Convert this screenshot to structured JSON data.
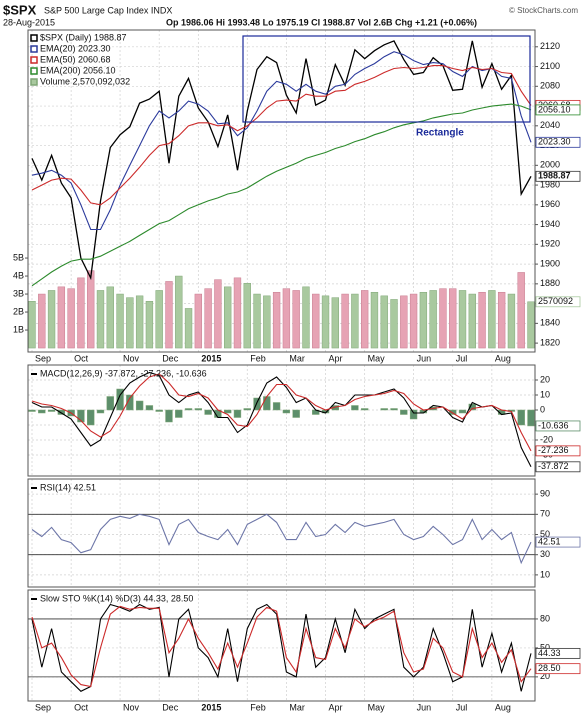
{
  "header": {
    "symbol": "$SPX",
    "name": "S&P 500 Large Cap Index INDX",
    "date": "28-Aug-2015",
    "quote": "Op 1986.06 Hi 1993.48 Lo 1975.19 Cl 1988.87 Vol 2.6B Chg +1.21 (+0.06%)",
    "credit": "© StockCharts.com",
    "annotation": "Rectangle"
  },
  "chart_data": [
    {
      "type": "line",
      "categories": [
        "Sep",
        null,
        null,
        null,
        "Oct",
        null,
        null,
        null,
        null,
        "Nov",
        null,
        null,
        null,
        "Dec",
        null,
        null,
        null,
        "2015",
        null,
        null,
        null,
        null,
        "Feb",
        null,
        null,
        null,
        "Mar",
        null,
        null,
        null,
        "Apr",
        null,
        null,
        null,
        "May",
        null,
        null,
        null,
        null,
        "Jun",
        null,
        null,
        null,
        "Jul",
        null,
        null,
        null,
        "Aug",
        null,
        null,
        null,
        null
      ],
      "ylim": [
        1811,
        2137
      ],
      "yticks": [
        1820,
        1840,
        1860,
        1880,
        1900,
        1920,
        1940,
        1960,
        1980,
        2000,
        2020,
        2040,
        2060,
        2080,
        2100,
        2120
      ],
      "y2lim": [
        -220000000,
        17670000000
      ],
      "y2ticks": [
        {
          "value": 1000000000,
          "label": "1B"
        },
        {
          "value": 2000000000,
          "label": "2B"
        },
        {
          "value": 3000000000,
          "label": "3B"
        },
        {
          "value": 4000000000,
          "label": "4B"
        },
        {
          "value": 5000000000,
          "label": "5B"
        }
      ],
      "grid": true,
      "series": [
        {
          "name": "$SPX (Daily) 1988.87",
          "type": "line",
          "color": "#000000",
          "tag": "1988.87",
          "values": [
            2007,
            1985,
            2010,
            1982,
            1967,
            1906,
            1886,
            1964,
            2018,
            2031,
            2039,
            2063,
            2067,
            2075,
            2002,
            2070,
            2088,
            2058,
            2044,
            2019,
            2051,
            1995,
            2055,
            2097,
            2110,
            2104,
            2071,
            2053,
            2108,
            2061,
            2066,
            2102,
            2081,
            2117,
            2108,
            2116,
            2122,
            2126,
            2107,
            2092,
            2094,
            2109,
            2101,
            2076,
            2077,
            2126,
            2079,
            2103,
            2077,
            2091,
            1971,
            1988.87
          ]
        },
        {
          "name": "EMA(20) 2023.30",
          "type": "line",
          "color": "#2b3a9c",
          "tag": "2023.30",
          "values": [
            1990,
            1992,
            1995,
            1990,
            1982,
            1960,
            1935,
            1935,
            1955,
            1980,
            2000,
            2020,
            2040,
            2055,
            2048,
            2055,
            2065,
            2062,
            2055,
            2042,
            2043,
            2030,
            2038,
            2055,
            2075,
            2085,
            2082,
            2075,
            2082,
            2075,
            2072,
            2080,
            2082,
            2092,
            2098,
            2103,
            2110,
            2115,
            2112,
            2106,
            2102,
            2104,
            2103,
            2095,
            2090,
            2100,
            2096,
            2098,
            2090,
            2088,
            2050,
            2023.3
          ]
        },
        {
          "name": "EMA(50) 2060.68",
          "type": "line",
          "color": "#cc2a2a",
          "tag": "2060.68",
          "values": [
            1975,
            1980,
            1985,
            1987,
            1986,
            1975,
            1962,
            1960,
            1967,
            1977,
            1987,
            1998,
            2010,
            2020,
            2022,
            2030,
            2040,
            2043,
            2043,
            2040,
            2041,
            2035,
            2040,
            2048,
            2058,
            2065,
            2066,
            2065,
            2072,
            2070,
            2070,
            2075,
            2076,
            2082,
            2085,
            2089,
            2094,
            2098,
            2099,
            2098,
            2099,
            2101,
            2101,
            2098,
            2096,
            2099,
            2097,
            2098,
            2094,
            2093,
            2075,
            2060.68
          ]
        },
        {
          "name": "EMA(200) 2056.10",
          "type": "line",
          "color": "#2c8a2c",
          "tag": "2056.10",
          "values": [
            1878,
            1885,
            1892,
            1898,
            1903,
            1905,
            1905,
            1908,
            1913,
            1918,
            1923,
            1929,
            1935,
            1941,
            1944,
            1950,
            1956,
            1960,
            1964,
            1967,
            1971,
            1973,
            1977,
            1983,
            1989,
            1994,
            1998,
            2002,
            2007,
            2010,
            2013,
            2017,
            2020,
            2024,
            2027,
            2031,
            2034,
            2038,
            2041,
            2043,
            2045,
            2048,
            2050,
            2052,
            2053,
            2056,
            2058,
            2060,
            2061,
            2062,
            2060,
            2056.1
          ]
        },
        {
          "name": "Volume 2,570,092,032",
          "type": "bar",
          "axis": "y2",
          "color": "#a9c99f",
          "down_color": "#e6a3b4",
          "tag": "2570092",
          "values": [
            2600000000,
            3000000000,
            3200000000,
            3400000000,
            3300000000,
            3900000000,
            4300000000,
            3200000000,
            3400000000,
            3000000000,
            2800000000,
            2900000000,
            2600000000,
            3200000000,
            3700000000,
            4000000000,
            2200000000,
            3000000000,
            3300000000,
            3800000000,
            3400000000,
            3900000000,
            3600000000,
            3000000000,
            2900000000,
            3100000000,
            3300000000,
            3200000000,
            3400000000,
            3000000000,
            2900000000,
            2800000000,
            3000000000,
            3000000000,
            3200000000,
            3100000000,
            2900000000,
            2700000000,
            2900000000,
            3000000000,
            3100000000,
            3200000000,
            3300000000,
            3300000000,
            3200000000,
            3000000000,
            3100000000,
            3200000000,
            3100000000,
            3000000000,
            4200000000,
            2570092032
          ]
        }
      ]
    },
    {
      "type": "line",
      "title": "MACD(12,26,9) -37.872, -27.236, -10.636",
      "ylim": [
        -44,
        30
      ],
      "yticks": [
        -30,
        -20,
        -10,
        0,
        10,
        20
      ],
      "grid": true,
      "series": [
        {
          "type": "bar",
          "color": "#5d8f6b",
          "tag": "-10.636",
          "values": [
            -1,
            -2,
            -1,
            -3,
            -4,
            -8,
            -10,
            -2,
            9,
            14,
            10,
            6,
            3,
            -1,
            -8,
            -5,
            1,
            1,
            -3,
            -5,
            -2,
            -5,
            1,
            8,
            9,
            5,
            -2,
            -5,
            0,
            -3,
            -2,
            3,
            0,
            3,
            1,
            0,
            1,
            1,
            -3,
            -6,
            -2,
            2,
            0,
            -3,
            -2,
            4,
            0,
            0,
            -3,
            -1,
            -10,
            -10.636
          ]
        },
        {
          "type": "line",
          "color": "#000000",
          "tag": "-37.872",
          "values": [
            5,
            2,
            2,
            -2,
            -6,
            -15,
            -24,
            -20,
            -5,
            10,
            18,
            22,
            25,
            23,
            10,
            5,
            10,
            12,
            5,
            -5,
            -5,
            -15,
            -10,
            5,
            18,
            22,
            15,
            5,
            8,
            0,
            -2,
            5,
            3,
            10,
            10,
            10,
            12,
            14,
            8,
            -2,
            -2,
            3,
            2,
            -5,
            -8,
            5,
            2,
            3,
            -3,
            -2,
            -25,
            -37.872
          ]
        },
        {
          "type": "line",
          "color": "#cc2a2a",
          "tag": "-27.236",
          "values": [
            6,
            4,
            3,
            1,
            -2,
            -7,
            -14,
            -18,
            -14,
            -4,
            8,
            16,
            22,
            24,
            18,
            10,
            9,
            11,
            8,
            0,
            -3,
            -10,
            -11,
            -3,
            9,
            17,
            17,
            10,
            8,
            3,
            0,
            2,
            3,
            7,
            9,
            10,
            11,
            13,
            11,
            4,
            0,
            1,
            2,
            -2,
            -6,
            1,
            2,
            3,
            0,
            -1,
            -15,
            -27.236
          ]
        }
      ]
    },
    {
      "type": "line",
      "title": "RSI(14) 42.51",
      "ylim": [
        -2,
        105
      ],
      "yticks": [
        10,
        30,
        50,
        70,
        90
      ],
      "hlines": [
        30,
        70
      ],
      "grid": true,
      "series": [
        {
          "type": "line",
          "color": "#6d76a8",
          "tag": "42.51",
          "values": [
            55,
            48,
            57,
            45,
            42,
            32,
            35,
            55,
            65,
            68,
            66,
            70,
            68,
            65,
            40,
            60,
            65,
            52,
            48,
            45,
            55,
            40,
            60,
            65,
            70,
            62,
            45,
            45,
            62,
            48,
            50,
            60,
            52,
            62,
            58,
            60,
            62,
            65,
            50,
            45,
            48,
            58,
            50,
            40,
            45,
            65,
            45,
            55,
            45,
            52,
            22,
            42.51
          ]
        }
      ]
    },
    {
      "type": "line",
      "title": "Slow STO %K(14) %D(3) 44.33, 28.50",
      "categories": [
        "Sep",
        null,
        null,
        null,
        "Oct",
        null,
        null,
        null,
        null,
        "Nov",
        null,
        null,
        null,
        "Dec",
        null,
        null,
        null,
        "2015",
        null,
        null,
        null,
        null,
        "Feb",
        null,
        null,
        null,
        "Mar",
        null,
        null,
        null,
        "Apr",
        null,
        null,
        null,
        "May",
        null,
        null,
        null,
        null,
        "Jun",
        null,
        null,
        null,
        "Jul",
        null,
        null,
        null,
        "Aug",
        null,
        null,
        null,
        null
      ],
      "ylim": [
        -5,
        110
      ],
      "yticks": [
        20,
        50,
        80
      ],
      "hlines": [
        20,
        80
      ],
      "grid": true,
      "series": [
        {
          "type": "line",
          "color": "#000000",
          "tag": "44.33",
          "values": [
            80,
            30,
            70,
            25,
            15,
            5,
            10,
            80,
            95,
            92,
            88,
            95,
            90,
            92,
            20,
            80,
            90,
            50,
            40,
            20,
            70,
            15,
            70,
            90,
            95,
            85,
            25,
            20,
            85,
            30,
            40,
            80,
            45,
            90,
            70,
            80,
            85,
            90,
            30,
            20,
            30,
            70,
            45,
            15,
            20,
            90,
            30,
            65,
            25,
            55,
            5,
            44.33
          ]
        },
        {
          "type": "line",
          "color": "#cc2a2a",
          "tag": "28.50",
          "values": [
            82,
            50,
            55,
            40,
            22,
            12,
            10,
            50,
            85,
            93,
            90,
            92,
            91,
            91,
            45,
            60,
            80,
            60,
            45,
            28,
            55,
            30,
            55,
            82,
            92,
            88,
            40,
            25,
            70,
            40,
            38,
            70,
            50,
            80,
            72,
            78,
            82,
            88,
            45,
            25,
            28,
            60,
            50,
            25,
            20,
            70,
            40,
            55,
            35,
            48,
            15,
            28.5
          ]
        }
      ]
    }
  ]
}
